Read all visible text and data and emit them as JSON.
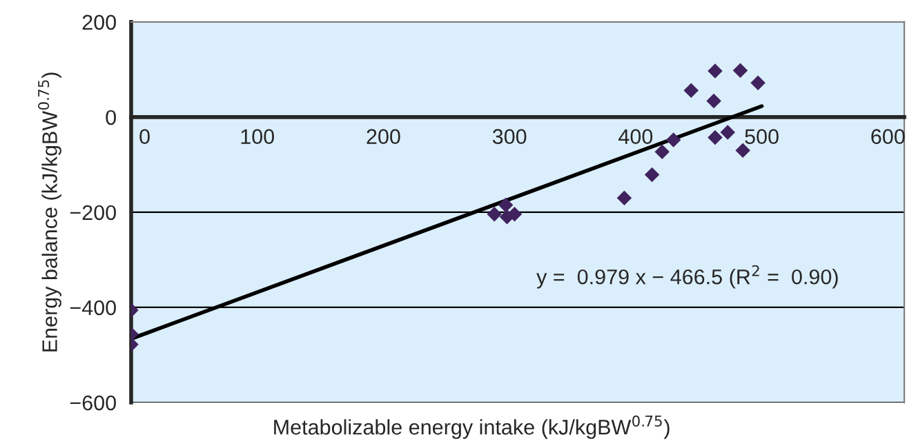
{
  "chart_data": {
    "type": "scatter",
    "xlabel": "Metabolizable energy intake (kJ/kgBW$^{0.75}$)",
    "ylabel": "Energy balance (kJ/kgBW$^{0.75}$)",
    "series": [
      {
        "color": "#40235e",
        "marker": "diamond",
        "x": [
          0,
          0,
          0,
          288,
          297,
          298,
          304,
          391,
          413,
          421,
          430,
          444,
          462,
          463,
          463,
          473,
          483,
          485,
          497
        ],
        "values": [
          -406,
          -456,
          -478,
          -204,
          -185,
          -210,
          -204,
          -170,
          -121,
          -73,
          -48,
          56,
          34,
          97,
          -43,
          -32,
          98,
          -70,
          72
        ]
      },
      {
        "type": "line",
        "color": "#000000",
        "marker": "none",
        "line_style": "solid",
        "x": [
          0,
          500
        ],
        "values": [
          -466,
          23
        ]
      }
    ],
    "annotations": [
      "y =  0.979 x − 466.5 (R$^{2}$ =  0.90)"
    ],
    "xlim": [
      0,
      613
    ],
    "xticks": [
      0,
      100,
      200,
      300,
      400,
      500,
      600
    ],
    "ylim": [
      -600,
      200
    ],
    "yticks": [
      -600,
      -400,
      -200,
      0,
      200
    ],
    "grid": "y",
    "legend": false
  }
}
